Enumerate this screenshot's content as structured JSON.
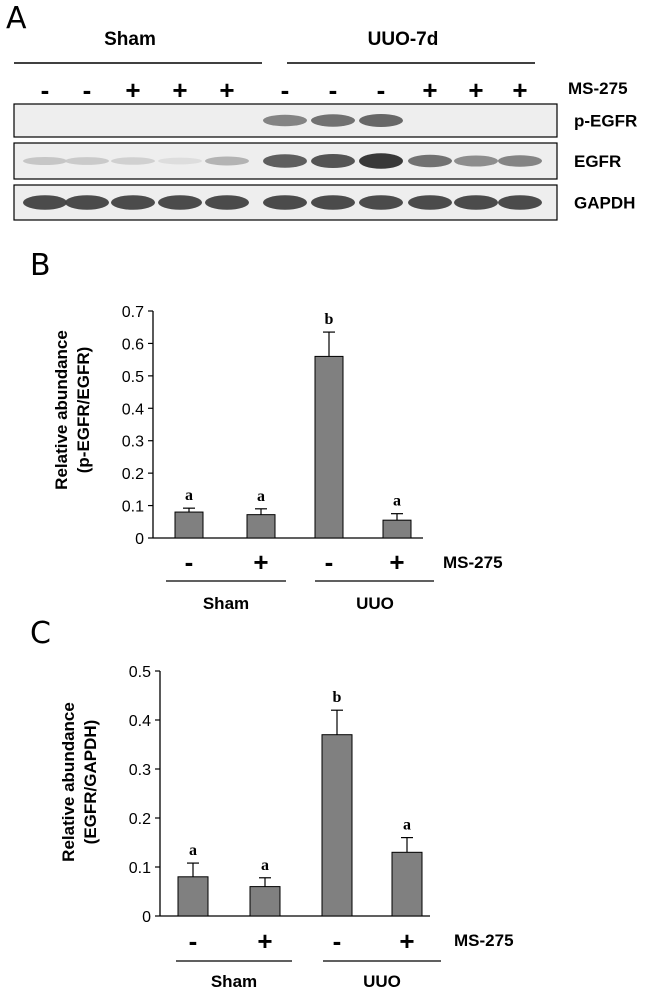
{
  "panels": {
    "a": "A",
    "b": "B",
    "c": "C"
  },
  "blot": {
    "group_labels": [
      "Sham",
      "UUO-7d"
    ],
    "lane_signs": [
      "-",
      "-",
      "+",
      "+",
      "+",
      "-",
      "-",
      "-",
      "+",
      "+",
      "+"
    ],
    "treatment_label": "MS-275",
    "rows": [
      {
        "label": "p-EGFR",
        "intensity": [
          0,
          0,
          0,
          0,
          0,
          0.55,
          0.65,
          0.7,
          0,
          0,
          0
        ]
      },
      {
        "label": "EGFR",
        "intensity": [
          0.2,
          0.18,
          0.15,
          0.08,
          0.3,
          0.75,
          0.8,
          0.95,
          0.65,
          0.5,
          0.55
        ]
      },
      {
        "label": "GAPDH",
        "intensity": [
          0.85,
          0.85,
          0.85,
          0.85,
          0.85,
          0.85,
          0.85,
          0.85,
          0.85,
          0.85,
          0.85
        ]
      }
    ]
  },
  "chart_data": [
    {
      "type": "bar",
      "ylabel": [
        "Relative abundance",
        "(p-EGFR/EGFR)"
      ],
      "ylim": [
        0,
        0.7
      ],
      "yticks": [
        "0",
        "0.1",
        "0.2",
        "0.3",
        "0.4",
        "0.5",
        "0.6",
        "0.7"
      ],
      "categories": [
        "-",
        "+",
        "-",
        "+"
      ],
      "values": [
        0.08,
        0.072,
        0.56,
        0.055
      ],
      "errors": [
        0.012,
        0.018,
        0.075,
        0.02
      ],
      "significance": [
        "a",
        "a",
        "b",
        "a"
      ],
      "groups": [
        "Sham",
        "UUO"
      ],
      "treatment_label": "MS-275",
      "bar_color": "#808080"
    },
    {
      "type": "bar",
      "ylabel": [
        "Relative abundance",
        "(EGFR/GAPDH)"
      ],
      "ylim": [
        0,
        0.5
      ],
      "yticks": [
        "0",
        "0.1",
        "0.2",
        "0.3",
        "0.4",
        "0.5"
      ],
      "categories": [
        "-",
        "+",
        "-",
        "+"
      ],
      "values": [
        0.08,
        0.06,
        0.37,
        0.13
      ],
      "errors": [
        0.028,
        0.018,
        0.05,
        0.03
      ],
      "significance": [
        "a",
        "a",
        "b",
        "a"
      ],
      "groups": [
        "Sham",
        "UUO"
      ],
      "treatment_label": "MS-275",
      "bar_color": "#808080"
    }
  ]
}
